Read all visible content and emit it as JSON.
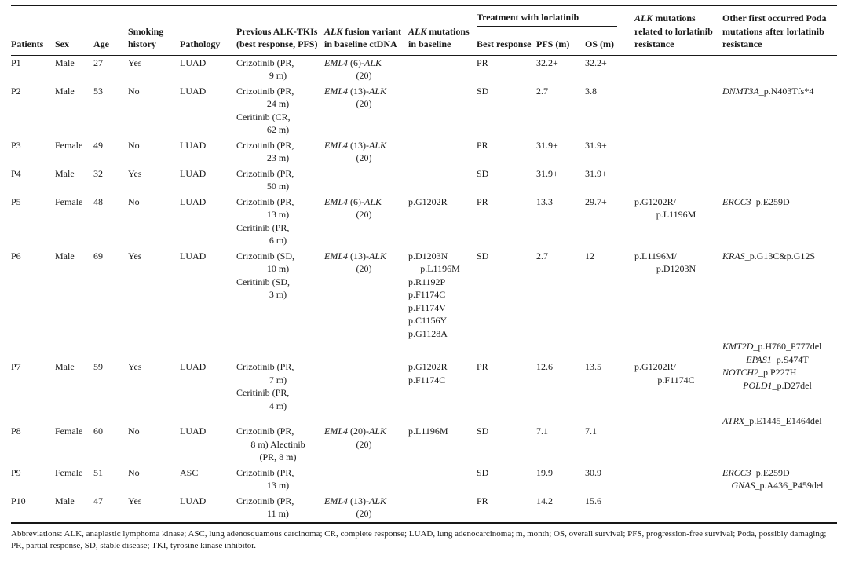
{
  "colors": {
    "background": "#ffffff",
    "text": "#1b1b1b",
    "rule": "#161616"
  },
  "table": {
    "header": {
      "col_patients": "Patients",
      "col_sex": "Sex",
      "col_age": "Age",
      "col_smoking": "Smoking history",
      "col_pathology": "Pathology",
      "col_previous": "Previous ALK-TKIs (best response, PFS)",
      "col_fusion": "~ALK~ fusion variant in baseline ctDNA",
      "col_baseline": "~ALK~ mutations in baseline",
      "group_lorlatinib": "Treatment with lorlatinib",
      "col_best": "Best response",
      "col_pfs": "PFS (m)",
      "col_os": "OS (m)",
      "col_resistance": "~ALK~ mutations related to lorlatinib resistance",
      "col_poda": "Other first occurred Poda mutations after lorlatinib resistance"
    },
    "rows": [
      {
        "patient": "P1",
        "sex": "Male",
        "age": "27",
        "smoking": "Yes",
        "pathology": "LUAD",
        "previous_tkis": [
          [
            "Crizotinib (PR,",
            "9 m)"
          ]
        ],
        "fusion": [
          [
            "~EML4~ (6)-~ALK~",
            "(20)"
          ]
        ],
        "baseline": [],
        "best_response": "PR",
        "pfs": "32.2+",
        "os": "32.2+",
        "resistance": [],
        "poda": []
      },
      {
        "patient": "P2",
        "sex": "Male",
        "age": "53",
        "smoking": "No",
        "pathology": "LUAD",
        "previous_tkis": [
          [
            "Crizotinib (PR,",
            "24 m)"
          ],
          [
            "Ceritinib (CR,",
            "62 m)"
          ]
        ],
        "fusion": [
          [
            "~EML4~ (13)-~ALK~",
            "(20)"
          ]
        ],
        "baseline": [],
        "best_response": "SD",
        "pfs": "2.7",
        "os": "3.8",
        "resistance": [],
        "poda": [
          [
            "~DNMT3A~_p.N403Tfs*4"
          ]
        ]
      },
      {
        "patient": "P3",
        "sex": "Female",
        "age": "49",
        "smoking": "No",
        "pathology": "LUAD",
        "previous_tkis": [
          [
            "Crizotinib (PR,",
            "23 m)"
          ]
        ],
        "fusion": [
          [
            "~EML4~ (13)-~ALK~",
            "(20)"
          ]
        ],
        "baseline": [],
        "best_response": "PR",
        "pfs": "31.9+",
        "os": "31.9+",
        "resistance": [],
        "poda": []
      },
      {
        "patient": "P4",
        "sex": "Male",
        "age": "32",
        "smoking": "Yes",
        "pathology": "LUAD",
        "previous_tkis": [
          [
            "Crizotinib (PR,",
            "50 m)"
          ]
        ],
        "fusion": [],
        "baseline": [],
        "best_response": "SD",
        "pfs": "31.9+",
        "os": "31.9+",
        "resistance": [],
        "poda": []
      },
      {
        "patient": "P5",
        "sex": "Female",
        "age": "48",
        "smoking": "No",
        "pathology": "LUAD",
        "previous_tkis": [
          [
            "Crizotinib (PR,",
            "13 m)"
          ],
          [
            "Ceritinib (PR,",
            "6 m)"
          ]
        ],
        "fusion": [
          [
            "~EML4~ (6)-~ALK~",
            "(20)"
          ]
        ],
        "baseline": [
          [
            "p.G1202R"
          ]
        ],
        "best_response": "PR",
        "pfs": "13.3",
        "os": "29.7+",
        "resistance": [
          [
            "p.G1202R/",
            "p.L1196M"
          ]
        ],
        "poda": [
          [
            "~ERCC3~_p.E259D"
          ]
        ]
      },
      {
        "patient": "P6",
        "sex": "Male",
        "age": "69",
        "smoking": "Yes",
        "pathology": "LUAD",
        "previous_tkis": [
          [
            "Crizotinib (SD,",
            "10 m)"
          ],
          [
            "Ceritinib (SD,",
            "3 m)"
          ]
        ],
        "fusion": [
          [
            "~EML4~ (13)-~ALK~",
            "(20)"
          ]
        ],
        "baseline": [
          [
            "p.D1203N",
            "p.L1196M"
          ],
          [
            "p.R1192P"
          ],
          [
            "p.F1174C"
          ],
          [
            "p.F1174V"
          ],
          [
            "p.C1156Y"
          ],
          [
            "p.G1128A"
          ]
        ],
        "best_response": "SD",
        "pfs": "2.7",
        "os": "12",
        "resistance": [
          [
            "p.L1196M/",
            "p.D1203N"
          ]
        ],
        "poda": [
          [
            "~KRAS~_p.G13C&p.G12S"
          ]
        ]
      },
      {
        "patient": "P7",
        "sex": "Male",
        "age": "59",
        "smoking": "Yes",
        "pathology": "LUAD",
        "previous_tkis": [
          [
            "Crizotinib (PR,",
            "7 m)"
          ],
          [
            "Ceritinib (PR,",
            "4 m)"
          ]
        ],
        "fusion": [],
        "baseline": [
          [
            "p.G1202R"
          ],
          [
            "p.F1174C"
          ]
        ],
        "best_response": "PR",
        "pfs": "12.6",
        "os": "13.5",
        "resistance": [
          [
            "p.G1202R/",
            "p.F1174C"
          ]
        ],
        "poda": [
          [
            "~KMT2D~_p.H760_P777del",
            "~EPAS1~_p.S474T"
          ],
          [
            "~NOTCH2~_p.P227H",
            "~POLD1~_p.D27del"
          ]
        ]
      },
      {
        "patient": "P8",
        "sex": "Female",
        "age": "60",
        "smoking": "No",
        "pathology": "LUAD",
        "previous_tkis": [
          [
            "Crizotinib (PR,",
            "8 m) Alectinib",
            "(PR, 8 m)"
          ]
        ],
        "fusion": [
          [
            "~EML4~ (20)-~ALK~",
            "(20)"
          ]
        ],
        "baseline": [
          [
            "p.L1196M"
          ]
        ],
        "best_response": "SD",
        "pfs": "7.1",
        "os": "7.1",
        "resistance": [],
        "poda": [
          [
            "~ATRX~_p.E1445_E1464del"
          ]
        ]
      },
      {
        "patient": "P9",
        "sex": "Female",
        "age": "51",
        "smoking": "No",
        "pathology": "ASC",
        "previous_tkis": [
          [
            "Crizotinib (PR,",
            "13 m)"
          ]
        ],
        "fusion": [],
        "baseline": [],
        "best_response": "SD",
        "pfs": "19.9",
        "os": "30.9",
        "resistance": [],
        "poda": [
          [
            "~ERCC3~_p.E259D",
            "~GNAS~_p.A436_P459del"
          ]
        ]
      },
      {
        "patient": "P10",
        "sex": "Male",
        "age": "47",
        "smoking": "Yes",
        "pathology": "LUAD",
        "previous_tkis": [
          [
            "Crizotinib (PR,",
            "11 m)"
          ]
        ],
        "fusion": [
          [
            "~EML4~ (13)-~ALK~",
            "(20)"
          ]
        ],
        "baseline": [],
        "best_response": "PR",
        "pfs": "14.2",
        "os": "15.6",
        "resistance": [],
        "poda": []
      }
    ],
    "footnote": "Abbreviations: ALK, anaplastic lymphoma kinase; ASC, lung adenosquamous carcinoma; CR, complete response; LUAD, lung adenocarcinoma; m, month; OS, overall survival; PFS, progression-free survival; Poda, possibly damaging; PR, partial response, SD, stable disease; TKI, tyrosine kinase inhibitor."
  }
}
